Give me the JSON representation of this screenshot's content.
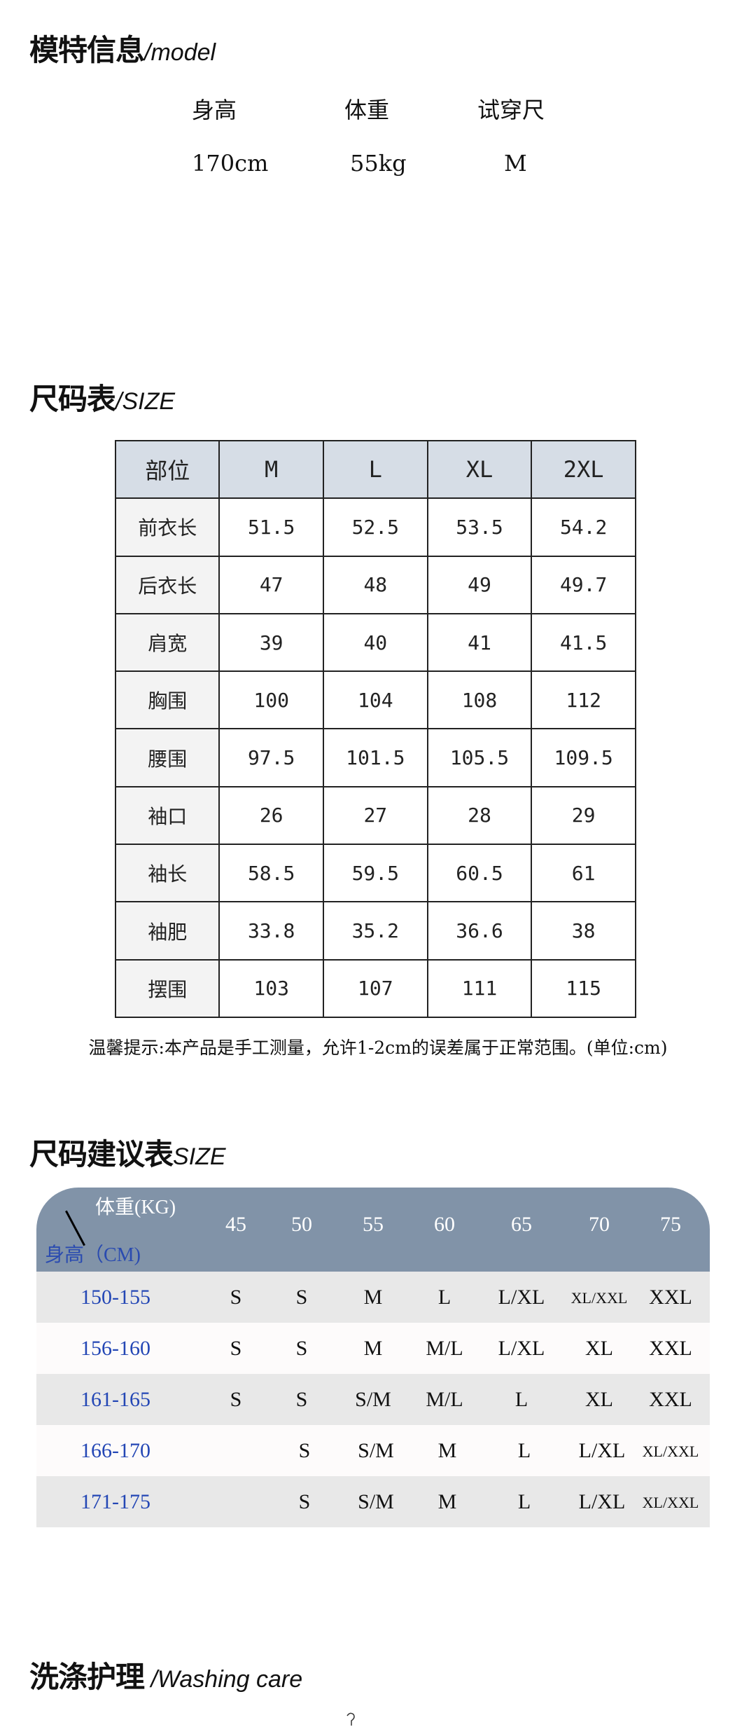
{
  "model_section": {
    "title": "模特信息",
    "title_en": "/model",
    "columns": [
      {
        "label": "身高",
        "value": "170cm"
      },
      {
        "label": "体重",
        "value": "55kg"
      },
      {
        "label": "试穿尺",
        "value": "M"
      }
    ]
  },
  "size_section": {
    "title": "尺码表",
    "title_en": "/SIZE",
    "headers": [
      "部位",
      "M",
      "L",
      "XL",
      "2XL"
    ],
    "rows": [
      [
        "前衣长",
        "51.5",
        "52.5",
        "53.5",
        "54.2"
      ],
      [
        "后衣长",
        "47",
        "48",
        "49",
        "49.7"
      ],
      [
        "肩宽",
        "39",
        "40",
        "41",
        "41.5"
      ],
      [
        "胸围",
        "100",
        "104",
        "108",
        "112"
      ],
      [
        "腰围",
        "97.5",
        "101.5",
        "105.5",
        "109.5"
      ],
      [
        "袖口",
        "26",
        "27",
        "28",
        "29"
      ],
      [
        "袖长",
        "58.5",
        "59.5",
        "60.5",
        "61"
      ],
      [
        "袖肥",
        "33.8",
        "35.2",
        "36.6",
        "38"
      ],
      [
        "摆围",
        "103",
        "107",
        "111",
        "115"
      ]
    ],
    "note": "温馨提示:本产品是手工测量，允许1-2cm的误差属于正常范围。(单位:cm)"
  },
  "recommend_section": {
    "title": "尺码建议表",
    "title_en": "SIZE",
    "weight_label": "体重(KG)",
    "height_label": "身高（CM)",
    "weights": [
      "45",
      "50",
      "55",
      "60",
      "65",
      "70",
      "75"
    ],
    "rows": [
      {
        "height": "150-155",
        "sizes": [
          "S",
          "S",
          "M",
          "L",
          "L/XL",
          "XL/XXL",
          "XXL"
        ]
      },
      {
        "height": "156-160",
        "sizes": [
          "S",
          "S",
          "M",
          "M/L",
          "L/XL",
          "XL",
          "XXL"
        ]
      },
      {
        "height": "161-165",
        "sizes": [
          "S",
          "S",
          "S/M",
          "M/L",
          "L",
          "XL",
          "XXL"
        ]
      },
      {
        "height": "166-170",
        "sizes": [
          "",
          "S",
          "S/M",
          "M",
          "L",
          "L/XL",
          "XL/XXL"
        ]
      },
      {
        "height": "171-175",
        "sizes": [
          "",
          "S",
          "S/M",
          "M",
          "L",
          "L/XL",
          "XL/XXL"
        ]
      }
    ],
    "colors": {
      "header": "#8193a8",
      "height_text": "#2447b5"
    }
  },
  "washing_section": {
    "title": "洗涤护理",
    "title_en": " /Washing care",
    "icon": "hanger-icon"
  }
}
